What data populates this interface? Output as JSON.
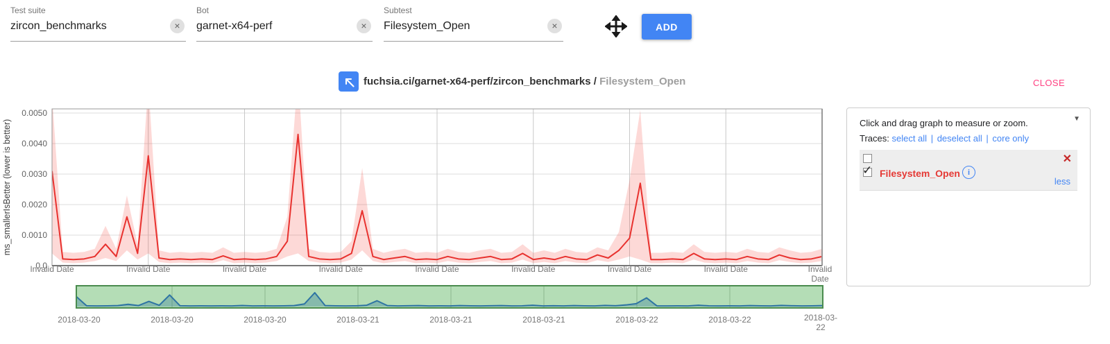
{
  "topbar": {
    "fields": [
      {
        "label": "Test suite",
        "value": "zircon_benchmarks"
      },
      {
        "label": "Bot",
        "value": "garnet-x64-perf"
      },
      {
        "label": "Subtest",
        "value": "Filesystem_Open"
      }
    ],
    "add_label": "ADD"
  },
  "header": {
    "title_path": "fuchsia.ci/garnet-x64-perf/zircon_benchmarks / ",
    "title_subtest": "Filesystem_Open",
    "close_label": "CLOSE"
  },
  "panel": {
    "hint": "Click and drag graph to measure or zoom.",
    "traces_label": "Traces:",
    "links": [
      "select all",
      "deselect all",
      "core only"
    ],
    "link_separator": "|",
    "trace_name": "Filesystem_Open",
    "less_label": "less"
  },
  "icons": {
    "clear_x": "×",
    "caret_down": "▼",
    "remove_x": "✕",
    "check": "✓",
    "info_i": "i"
  },
  "colors": {
    "accent_blue": "#4285f4",
    "close_pink": "#ff4081",
    "trace_red": "#e53935",
    "line_red": "#e8312e",
    "band_pink": "rgba(244,67,54,0.2)",
    "overview_green_fill": "rgba(76,175,80,0.42)",
    "overview_green_border": "#4a8b4e",
    "overview_blue": "#2e74a3",
    "overview_blue_fill": "rgba(49,120,156,0.35)"
  },
  "chart_data": {
    "type": "line",
    "title": "fuchsia.ci/garnet-x64-perf/zircon_benchmarks / Filesystem_Open",
    "ylabel": "ms_smallerIsBetter (lower is better)",
    "ylim": [
      0,
      0.005
    ],
    "grid": true,
    "ytick_labels": [
      "0.0050",
      "0.0040",
      "0.0030",
      "0.0020",
      "0.0010",
      "0.0"
    ],
    "ytick_values": [
      0.005,
      0.004,
      0.003,
      0.002,
      0.001,
      0
    ],
    "xticks_main": [
      "Invalid Date",
      "Invalid Date",
      "Invalid Date",
      "Invalid Date",
      "Invalid Date",
      "Invalid Date",
      "Invalid Date",
      "Invalid Date",
      "Invalid Date"
    ],
    "xticks_mini": [
      "2018-03-20",
      "2018-03-20",
      "2018-03-20",
      "2018-03-21",
      "2018-03-21",
      "2018-03-21",
      "2018-03-22",
      "2018-03-22",
      "2018-03-22"
    ],
    "series": [
      {
        "name": "Filesystem_Open",
        "color": "#e8312e",
        "values": [
          0.0031,
          0.00022,
          0.0002,
          0.00022,
          0.0003,
          0.0007,
          0.0003,
          0.0016,
          0.0004,
          0.0036,
          0.00025,
          0.0002,
          0.00022,
          0.0002,
          0.00022,
          0.0002,
          0.00032,
          0.0002,
          0.00022,
          0.0002,
          0.00022,
          0.0003,
          0.0008,
          0.0043,
          0.0003,
          0.00022,
          0.0002,
          0.00022,
          0.0004,
          0.0018,
          0.0003,
          0.0002,
          0.00025,
          0.0003,
          0.0002,
          0.00022,
          0.0002,
          0.0003,
          0.00022,
          0.0002,
          0.00025,
          0.0003,
          0.0002,
          0.00022,
          0.0004,
          0.0002,
          0.00025,
          0.0002,
          0.0003,
          0.00022,
          0.0002,
          0.00035,
          0.00025,
          0.0005,
          0.0009,
          0.0027,
          0.0002,
          0.0002,
          0.00022,
          0.0002,
          0.0004,
          0.00022,
          0.0002,
          0.00022,
          0.0002,
          0.0003,
          0.00022,
          0.0002,
          0.00035,
          0.00025,
          0.0002,
          0.00022,
          0.0003
        ],
        "band_upper": [
          0.0056,
          0.00045,
          0.00042,
          0.00045,
          0.00055,
          0.0013,
          0.00055,
          0.0023,
          0.0007,
          0.006,
          0.0005,
          0.00042,
          0.00045,
          0.00042,
          0.00045,
          0.00042,
          0.0006,
          0.00042,
          0.00045,
          0.00042,
          0.00045,
          0.00055,
          0.0016,
          0.0063,
          0.00055,
          0.00045,
          0.00042,
          0.00045,
          0.0008,
          0.0032,
          0.00055,
          0.00042,
          0.0005,
          0.00055,
          0.00042,
          0.00045,
          0.00042,
          0.00055,
          0.00045,
          0.00042,
          0.0005,
          0.00055,
          0.00042,
          0.00045,
          0.0007,
          0.00042,
          0.0005,
          0.00042,
          0.00055,
          0.00045,
          0.00042,
          0.0006,
          0.0005,
          0.0011,
          0.0028,
          0.0051,
          0.00042,
          0.00042,
          0.00045,
          0.00042,
          0.0007,
          0.00045,
          0.00042,
          0.00045,
          0.00042,
          0.00055,
          0.00045,
          0.00042,
          0.0006,
          0.0005,
          0.00042,
          0.00045,
          0.00055
        ],
        "band_lower": [
          0.0004,
          0.0001,
          8e-05,
          0.0001,
          0.00015,
          0.00025,
          0.00015,
          0.0005,
          0.0002,
          0.0004,
          0.00012,
          8e-05,
          0.0001,
          8e-05,
          0.0001,
          8e-05,
          0.00018,
          8e-05,
          0.0001,
          8e-05,
          0.0001,
          0.00015,
          0.0003,
          0.0004,
          0.00015,
          0.0001,
          8e-05,
          0.0001,
          0.0002,
          0.0005,
          0.00015,
          8e-05,
          0.00012,
          0.00015,
          8e-05,
          0.0001,
          8e-05,
          0.00015,
          0.0001,
          8e-05,
          0.00012,
          0.00015,
          8e-05,
          0.0001,
          0.0002,
          8e-05,
          0.00012,
          8e-05,
          0.00015,
          0.0001,
          8e-05,
          0.00018,
          0.00012,
          0.0002,
          0.0003,
          0.0002,
          8e-05,
          8e-05,
          0.0001,
          8e-05,
          0.0002,
          0.0001,
          8e-05,
          0.0001,
          8e-05,
          0.00015,
          0.0001,
          8e-05,
          0.00018,
          0.00012,
          8e-05,
          0.0001,
          0.00015
        ]
      }
    ]
  }
}
